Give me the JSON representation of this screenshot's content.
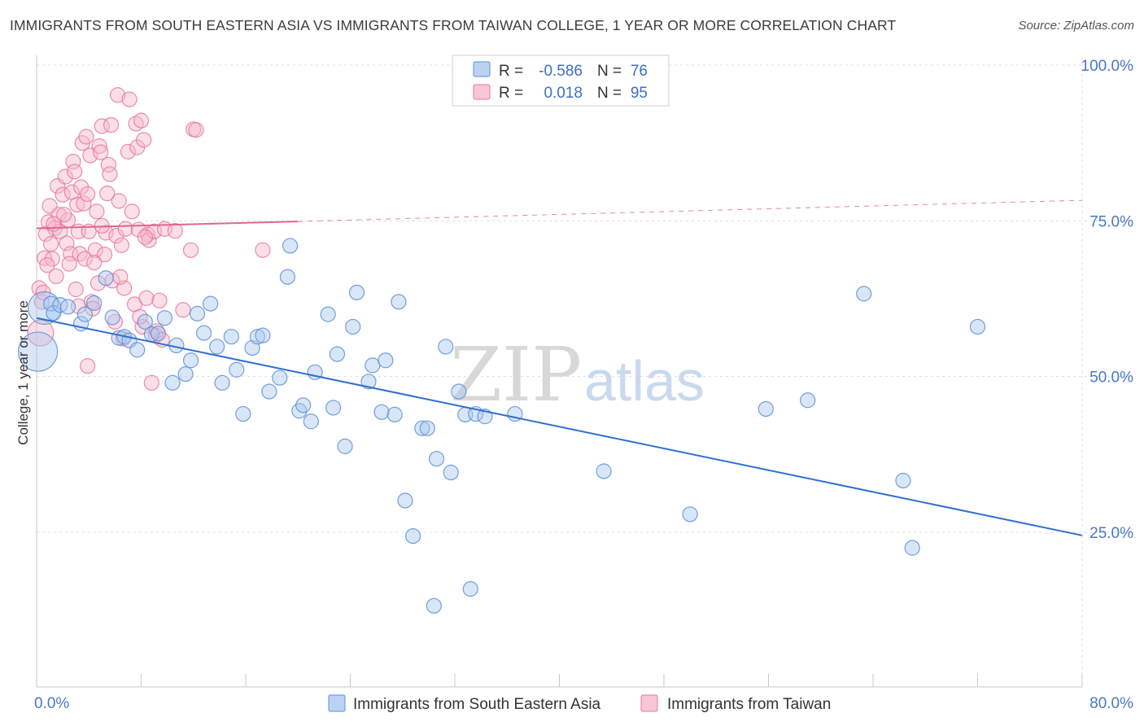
{
  "title": "IMMIGRANTS FROM SOUTH EASTERN ASIA VS IMMIGRANTS FROM TAIWAN COLLEGE, 1 YEAR OR MORE CORRELATION CHART",
  "source": "Source: ZipAtlas.com",
  "watermark": {
    "zip": "ZIP",
    "atlas": "atlas"
  },
  "colors": {
    "blue_fill": "#a9c8f0",
    "blue_stroke": "#5a8fd6",
    "blue_line": "#2f6fd0",
    "pink_fill": "#f7b8cb",
    "pink_stroke": "#e8789e",
    "pink_line": "#e0668f",
    "grid": "#dddddd",
    "axis_text": "#4a78c4"
  },
  "chart_data": {
    "type": "scatter",
    "xlabel": "",
    "ylabel": "College, 1 year or more",
    "xlim": [
      0,
      80
    ],
    "ylim": [
      0,
      105
    ],
    "x_tick_labels": [
      {
        "value": 0,
        "label": "0.0%"
      },
      {
        "value": 80,
        "label": "80.0%"
      }
    ],
    "y_tick_labels": [
      {
        "value": 25,
        "label": "25.0%"
      },
      {
        "value": 50,
        "label": "50.0%"
      },
      {
        "value": 75,
        "label": "75.0%"
      },
      {
        "value": 100,
        "label": "100.0%"
      }
    ],
    "grid": "horizontal dashed",
    "legend": {
      "placement": "top-center",
      "entries": [
        {
          "r_label": "R =",
          "r_value": "-0.586",
          "n_label": "N =",
          "n_value": "76"
        },
        {
          "r_label": "R =",
          "r_value": "0.018",
          "n_label": "N =",
          "n_value": "95"
        }
      ]
    },
    "bottom_legend": [
      "Immigrants from South Eastern Asia",
      "Immigrants from Taiwan"
    ],
    "series": [
      {
        "name": "Immigrants from South Eastern Asia",
        "trend": {
          "x0": 0,
          "y0": 59.4,
          "x1": 80,
          "y1": 24.5
        },
        "points": [
          [
            0.1,
            54.0
          ],
          [
            0.6,
            61.0
          ],
          [
            1.1,
            61.7
          ],
          [
            1.3,
            60.2
          ],
          [
            1.8,
            61.5
          ],
          [
            2.4,
            61.2
          ],
          [
            3.4,
            58.5
          ],
          [
            3.7,
            60.0
          ],
          [
            4.4,
            61.8
          ],
          [
            5.3,
            65.8
          ],
          [
            5.8,
            59.5
          ],
          [
            6.3,
            56.2
          ],
          [
            6.7,
            56.4
          ],
          [
            7.1,
            55.8
          ],
          [
            7.7,
            54.3
          ],
          [
            8.3,
            58.8
          ],
          [
            8.8,
            56.8
          ],
          [
            9.3,
            56.9
          ],
          [
            9.8,
            59.4
          ],
          [
            10.4,
            49.0
          ],
          [
            10.7,
            55.0
          ],
          [
            11.4,
            50.4
          ],
          [
            11.8,
            52.6
          ],
          [
            12.3,
            60.1
          ],
          [
            12.8,
            57.0
          ],
          [
            13.3,
            61.7
          ],
          [
            13.8,
            54.8
          ],
          [
            14.2,
            49.0
          ],
          [
            14.9,
            56.4
          ],
          [
            15.3,
            51.1
          ],
          [
            15.8,
            44.0
          ],
          [
            16.5,
            54.6
          ],
          [
            16.9,
            56.4
          ],
          [
            17.3,
            56.6
          ],
          [
            17.8,
            47.6
          ],
          [
            18.6,
            49.8
          ],
          [
            19.2,
            66.0
          ],
          [
            19.4,
            71.0
          ],
          [
            20.1,
            44.5
          ],
          [
            20.4,
            45.4
          ],
          [
            21.0,
            42.8
          ],
          [
            21.3,
            50.7
          ],
          [
            22.3,
            60.0
          ],
          [
            22.7,
            45.0
          ],
          [
            23.0,
            53.6
          ],
          [
            23.6,
            38.8
          ],
          [
            24.2,
            58.0
          ],
          [
            24.5,
            63.5
          ],
          [
            25.4,
            49.2
          ],
          [
            25.7,
            51.8
          ],
          [
            26.4,
            44.3
          ],
          [
            26.7,
            52.6
          ],
          [
            27.4,
            43.9
          ],
          [
            27.7,
            62.0
          ],
          [
            28.2,
            30.1
          ],
          [
            28.8,
            24.4
          ],
          [
            29.5,
            41.7
          ],
          [
            29.9,
            41.7
          ],
          [
            30.4,
            13.2
          ],
          [
            30.6,
            36.8
          ],
          [
            31.3,
            54.8
          ],
          [
            31.7,
            34.6
          ],
          [
            32.3,
            47.6
          ],
          [
            32.8,
            43.9
          ],
          [
            33.2,
            15.9
          ],
          [
            33.6,
            44.0
          ],
          [
            34.3,
            43.6
          ],
          [
            36.6,
            44.0
          ],
          [
            43.4,
            34.8
          ],
          [
            50.0,
            27.9
          ],
          [
            55.8,
            44.8
          ],
          [
            59.0,
            46.2
          ],
          [
            63.3,
            63.3
          ],
          [
            66.3,
            33.3
          ],
          [
            67.0,
            22.5
          ],
          [
            72.0,
            58.0
          ]
        ]
      },
      {
        "name": "Immigrants from Taiwan",
        "trend": {
          "x0": 0,
          "y0": 73.8,
          "x1": 20.0,
          "y1": 74.9,
          "dash_x1": 80,
          "dash_y1": 78.3
        },
        "points": [
          [
            0.2,
            64.2
          ],
          [
            0.4,
            62.0
          ],
          [
            0.6,
            69.0
          ],
          [
            0.7,
            72.9
          ],
          [
            0.9,
            74.8
          ],
          [
            1.0,
            77.4
          ],
          [
            1.2,
            68.9
          ],
          [
            1.4,
            73.8
          ],
          [
            1.6,
            80.6
          ],
          [
            1.7,
            76.0
          ],
          [
            1.8,
            73.3
          ],
          [
            2.0,
            79.2
          ],
          [
            2.2,
            82.1
          ],
          [
            2.3,
            71.4
          ],
          [
            2.4,
            75.1
          ],
          [
            2.6,
            69.7
          ],
          [
            2.7,
            79.6
          ],
          [
            2.8,
            84.5
          ],
          [
            2.9,
            82.9
          ],
          [
            3.0,
            64.0
          ],
          [
            3.1,
            77.6
          ],
          [
            3.2,
            73.3
          ],
          [
            3.3,
            69.7
          ],
          [
            3.4,
            80.4
          ],
          [
            3.5,
            87.5
          ],
          [
            3.6,
            77.8
          ],
          [
            3.7,
            68.9
          ],
          [
            3.8,
            88.5
          ],
          [
            3.9,
            79.3
          ],
          [
            4.0,
            73.3
          ],
          [
            4.1,
            85.5
          ],
          [
            4.2,
            62.0
          ],
          [
            4.3,
            60.9
          ],
          [
            4.5,
            70.3
          ],
          [
            4.6,
            76.5
          ],
          [
            4.8,
            87.0
          ],
          [
            4.9,
            86.0
          ],
          [
            5.0,
            90.2
          ],
          [
            5.2,
            69.6
          ],
          [
            5.3,
            73.1
          ],
          [
            5.5,
            84.0
          ],
          [
            5.6,
            82.5
          ],
          [
            5.7,
            90.4
          ],
          [
            5.8,
            65.4
          ],
          [
            6.0,
            58.8
          ],
          [
            6.1,
            72.6
          ],
          [
            6.2,
            95.2
          ],
          [
            6.3,
            78.2
          ],
          [
            6.5,
            71.1
          ],
          [
            6.7,
            64.2
          ],
          [
            6.8,
            73.7
          ],
          [
            7.0,
            86.1
          ],
          [
            7.1,
            94.5
          ],
          [
            7.3,
            76.5
          ],
          [
            7.5,
            61.6
          ],
          [
            7.6,
            90.6
          ],
          [
            7.7,
            86.8
          ],
          [
            7.8,
            73.6
          ],
          [
            8.0,
            91.1
          ],
          [
            8.1,
            58.0
          ],
          [
            8.2,
            88.0
          ],
          [
            8.4,
            62.6
          ],
          [
            8.5,
            72.8
          ],
          [
            8.6,
            71.9
          ],
          [
            8.8,
            49.0
          ],
          [
            9.0,
            73.3
          ],
          [
            9.1,
            56.6
          ],
          [
            9.2,
            57.3
          ],
          [
            9.4,
            62.2
          ],
          [
            9.6,
            55.9
          ],
          [
            11.8,
            70.3
          ],
          [
            12.0,
            89.7
          ],
          [
            12.2,
            89.6
          ],
          [
            17.3,
            70.3
          ],
          [
            0.3,
            57.0
          ],
          [
            0.5,
            63.5
          ],
          [
            0.8,
            67.9
          ],
          [
            1.1,
            71.3
          ],
          [
            1.3,
            74.5
          ],
          [
            1.5,
            66.1
          ],
          [
            2.1,
            76.0
          ],
          [
            2.5,
            68.1
          ],
          [
            3.2,
            61.3
          ],
          [
            3.9,
            51.7
          ],
          [
            4.4,
            68.3
          ],
          [
            5.0,
            74.2
          ],
          [
            5.4,
            79.4
          ],
          [
            6.6,
            56.1
          ],
          [
            7.9,
            59.6
          ],
          [
            8.3,
            72.4
          ],
          [
            9.8,
            73.7
          ],
          [
            10.6,
            73.4
          ],
          [
            11.2,
            60.7
          ],
          [
            6.4,
            66.0
          ],
          [
            4.7,
            65.0
          ]
        ]
      }
    ]
  }
}
